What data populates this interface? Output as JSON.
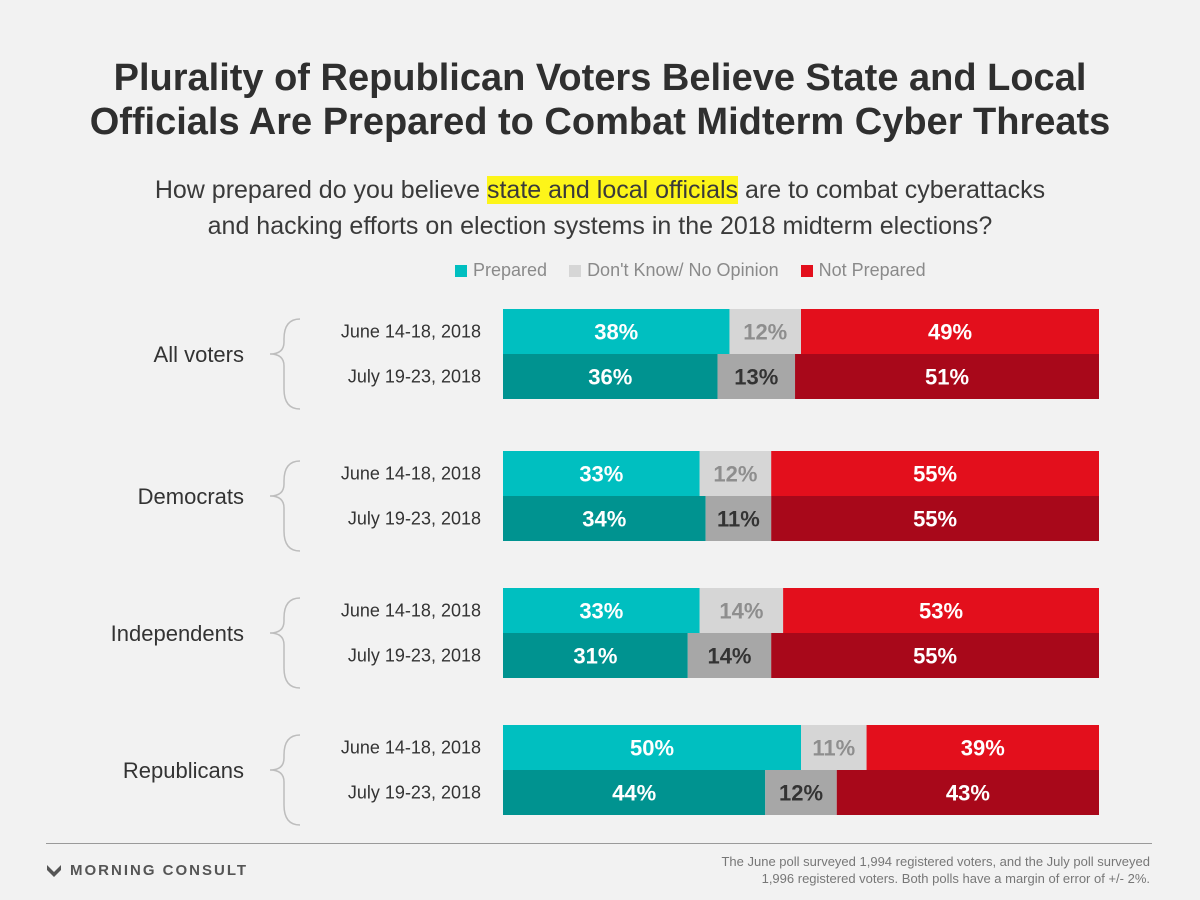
{
  "title_lines": [
    "Plurality of Republican Voters Believe State and Local",
    "Officials Are Prepared to Combat Midterm Cyber Threats"
  ],
  "subtitle": {
    "prefix": "How prepared do you believe ",
    "highlight": "state and local officials",
    "suffix": " are to combat cyberattacks",
    "line2": "and hacking efforts on election systems in the 2018 midterm elections?"
  },
  "legend": [
    {
      "label": "Prepared",
      "color": "#00bfc0"
    },
    {
      "label": "Don't Know/ No Opinion",
      "color": "#d6d6d6"
    },
    {
      "label": "Not Prepared",
      "color": "#e30f1c"
    }
  ],
  "colors": {
    "prepared_june": "#00bfc0",
    "prepared_july": "#009390",
    "dk_june": "#d6d6d6",
    "dk_july": "#a7a7a7",
    "notprep_june": "#e30f1c",
    "notprep_july": "#a8081a",
    "dk_june_text": "#8e8e8e",
    "dk_july_text": "#333333",
    "bracket": "#bdbdbd"
  },
  "chart_data": {
    "type": "bar",
    "orientation": "horizontal",
    "stacked": true,
    "xlim": [
      0,
      100
    ],
    "series_names": [
      "Prepared",
      "Don't Know/ No Opinion",
      "Not Prepared"
    ],
    "groups": [
      {
        "name": "All voters",
        "rows": [
          {
            "label": "June 14-18, 2018",
            "values": [
              38,
              12,
              49
            ]
          },
          {
            "label": "July 19-23, 2018",
            "values": [
              36,
              13,
              51
            ]
          }
        ]
      },
      {
        "name": "Democrats",
        "rows": [
          {
            "label": "June 14-18, 2018",
            "values": [
              33,
              12,
              55
            ]
          },
          {
            "label": "July 19-23, 2018",
            "values": [
              34,
              11,
              55
            ]
          }
        ]
      },
      {
        "name": "Independents",
        "rows": [
          {
            "label": "June 14-18, 2018",
            "values": [
              33,
              14,
              53
            ]
          },
          {
            "label": "July 19-23, 2018",
            "values": [
              31,
              14,
              55
            ]
          }
        ]
      },
      {
        "name": "Republicans",
        "rows": [
          {
            "label": "June 14-18, 2018",
            "values": [
              50,
              11,
              39
            ]
          },
          {
            "label": "July 19-23, 2018",
            "values": [
              44,
              12,
              43
            ]
          }
        ]
      }
    ],
    "value_suffix": "%"
  },
  "footer": {
    "brand": "MORNING CONSULT",
    "note_line1": "The June poll surveyed  1,994 registered voters, and the July poll surveyed",
    "note_line2": "1,996 registered voters. Both polls have a margin of error of +/- 2%."
  }
}
